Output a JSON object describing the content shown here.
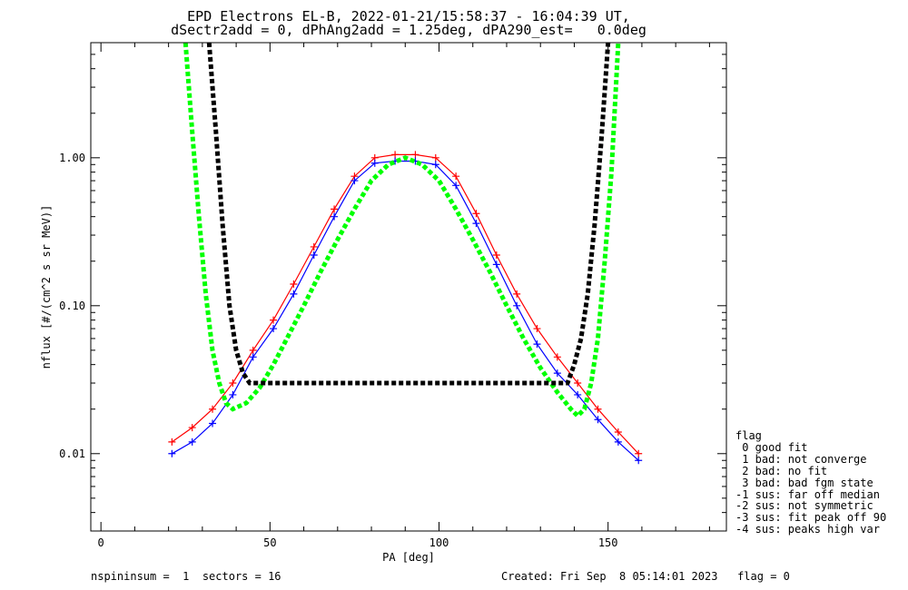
{
  "title_line1": "EPD Electrons EL-B, 2022-01-21/15:58:37 - 16:04:39 UT,",
  "title_line2": "dSectr2add = 0, dPhAng2add = 1.25deg, dPA290_est=   0.0deg",
  "footer_left": "nspininsum =  1  sectors = 16",
  "footer_right": "Created: Fri Sep  8 05:14:01 2023   flag = 0",
  "legend": {
    "title": "flag",
    "items": [
      " 0 good fit",
      " 1 bad: not converge",
      " 2 bad: no fit",
      " 3 bad: bad fgm state",
      "-1 sus: far off median",
      "-2 sus: not symmetric",
      "-3 sus: fit peak off 90",
      "-4 sus: peaks high var"
    ]
  },
  "chart_data": {
    "type": "line",
    "xlabel": "PA [deg]",
    "ylabel": "nflux [#/(cm^2 s sr MeV)]",
    "xlim": [
      -3,
      185
    ],
    "ylim": [
      0.003,
      6.0
    ],
    "yscale": "log",
    "xticks": [
      0,
      50,
      100,
      150
    ],
    "yticks": [
      {
        "value": 0.01,
        "label": "0.01"
      },
      {
        "value": 0.1,
        "label": "0.10"
      },
      {
        "value": 1.0,
        "label": "1.00"
      }
    ],
    "colors": {
      "red_series": "#ff0000",
      "blue_series": "#0000ff",
      "fit_green": "#00ff00",
      "fit_black": "#000000"
    },
    "series": [
      {
        "color": "#ff0000",
        "x": [
          21,
          27,
          33,
          39,
          45,
          51,
          57,
          63,
          69,
          75,
          81,
          87,
          93,
          99,
          105,
          111,
          117,
          123,
          129,
          135,
          141,
          147,
          153,
          159
        ],
        "y": [
          0.012,
          0.015,
          0.02,
          0.03,
          0.05,
          0.08,
          0.14,
          0.25,
          0.45,
          0.75,
          1.0,
          1.05,
          1.05,
          1.0,
          0.75,
          0.42,
          0.22,
          0.12,
          0.07,
          0.045,
          0.03,
          0.02,
          0.014,
          0.01
        ]
      },
      {
        "color": "#0000ff",
        "x": [
          21,
          27,
          33,
          39,
          45,
          51,
          57,
          63,
          69,
          75,
          81,
          87,
          93,
          99,
          105,
          111,
          117,
          123,
          129,
          135,
          141,
          147,
          153,
          159
        ],
        "y": [
          0.01,
          0.012,
          0.016,
          0.025,
          0.045,
          0.07,
          0.12,
          0.22,
          0.4,
          0.7,
          0.92,
          0.95,
          0.95,
          0.9,
          0.65,
          0.36,
          0.19,
          0.1,
          0.055,
          0.035,
          0.025,
          0.017,
          0.012,
          0.009
        ]
      },
      {
        "color": "#00ff00",
        "x": [
          25,
          27,
          29,
          31,
          33,
          35,
          37,
          39,
          43,
          47,
          51,
          55,
          60,
          65,
          70,
          75,
          80,
          85,
          90,
          95,
          100,
          105,
          110,
          115,
          120,
          125,
          130,
          135,
          139,
          141,
          143,
          145,
          147,
          149,
          151,
          153
        ],
        "y": [
          6.0,
          1.5,
          0.4,
          0.12,
          0.05,
          0.03,
          0.022,
          0.02,
          0.022,
          0.028,
          0.04,
          0.06,
          0.1,
          0.17,
          0.28,
          0.45,
          0.7,
          0.9,
          1.0,
          0.9,
          0.7,
          0.45,
          0.28,
          0.17,
          0.1,
          0.06,
          0.038,
          0.026,
          0.02,
          0.018,
          0.02,
          0.03,
          0.06,
          0.2,
          0.8,
          6.0
        ]
      },
      {
        "color": "#000000",
        "x": [
          32,
          34,
          36,
          38,
          40,
          42,
          44,
          138,
          140,
          142,
          144,
          146,
          148,
          150
        ],
        "y": [
          6.0,
          1.5,
          0.35,
          0.1,
          0.05,
          0.035,
          0.03,
          0.03,
          0.04,
          0.06,
          0.12,
          0.35,
          1.3,
          6.0
        ]
      }
    ]
  }
}
